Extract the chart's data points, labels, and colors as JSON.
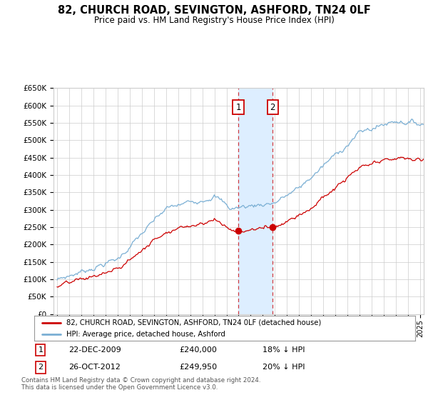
{
  "title": "82, CHURCH ROAD, SEVINGTON, ASHFORD, TN24 0LF",
  "subtitle": "Price paid vs. HM Land Registry's House Price Index (HPI)",
  "ylim": [
    0,
    650000
  ],
  "yticks": [
    0,
    50000,
    100000,
    150000,
    200000,
    250000,
    300000,
    350000,
    400000,
    450000,
    500000,
    550000,
    600000,
    650000
  ],
  "xlim_start": 1994.7,
  "xlim_end": 2025.3,
  "transaction1_date": 2009.97,
  "transaction1_price": 240000,
  "transaction2_date": 2012.82,
  "transaction2_price": 249950,
  "legend_label_red": "82, CHURCH ROAD, SEVINGTON, ASHFORD, TN24 0LF (detached house)",
  "legend_label_blue": "HPI: Average price, detached house, Ashford",
  "footnote": "Contains HM Land Registry data © Crown copyright and database right 2024.\nThis data is licensed under the Open Government Licence v3.0.",
  "red_color": "#cc0000",
  "blue_color": "#7aafd4",
  "highlight_color": "#ddeeff",
  "grid_color": "#cccccc",
  "background_color": "#ffffff"
}
